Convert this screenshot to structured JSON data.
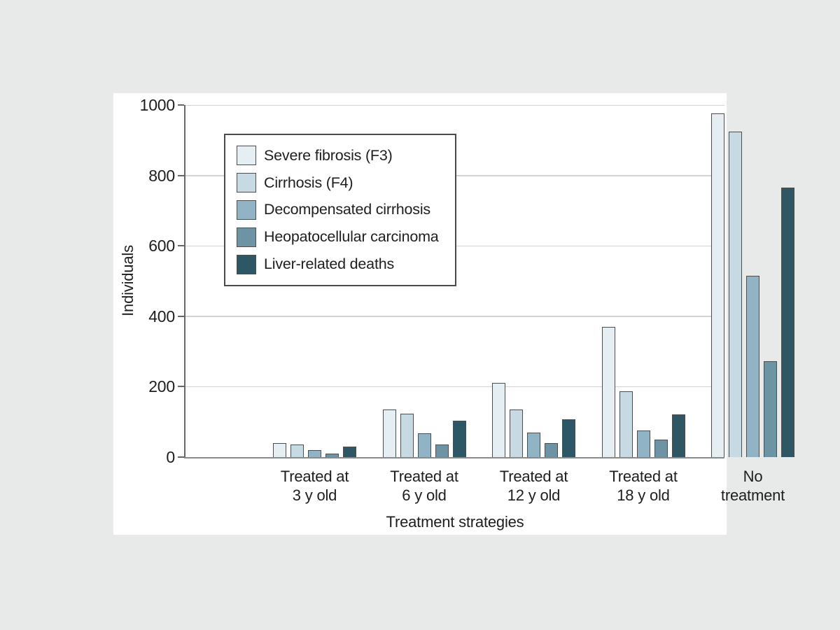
{
  "figure": {
    "page_background": "#e8eaea",
    "panel_background": "#ffffff"
  },
  "chart_data": {
    "type": "bar",
    "title": "",
    "xlabel": "Treatment strategies",
    "ylabel": "Individuals",
    "ylim": [
      0,
      1000
    ],
    "yticks": [
      0,
      200,
      400,
      600,
      800,
      1000
    ],
    "grid": true,
    "legend_position": "upper-left-inside",
    "categories": [
      [
        "Treated at",
        "3 y old"
      ],
      [
        "Treated at",
        "6 y old"
      ],
      [
        "Treated at",
        "12 y old"
      ],
      [
        "Treated at",
        "18 y old"
      ],
      [
        "No",
        "treatment"
      ]
    ],
    "series": [
      {
        "name": "Severe fibrosis (F3)",
        "color": "#e4eef3",
        "values": [
          40,
          135,
          210,
          370,
          977
        ]
      },
      {
        "name": "Cirrhosis (F4)",
        "color": "#c7dae3",
        "values": [
          36,
          123,
          135,
          186,
          925
        ]
      },
      {
        "name": "Decompensated cirrhosis",
        "color": "#90b4c5",
        "values": [
          20,
          68,
          70,
          76,
          515
        ]
      },
      {
        "name": "Heopatocellular carcinoma",
        "color": "#6d94a4",
        "values": [
          9,
          36,
          40,
          50,
          273
        ]
      },
      {
        "name": "Liver-related deaths",
        "color": "#2e5765",
        "values": [
          30,
          104,
          108,
          122,
          766
        ]
      }
    ],
    "styles": {
      "bar_border": "#4d4d4d",
      "grid_color": "#d2d2d2",
      "y_axis_color": "#666666",
      "x_axis_color": "#8a8a8a",
      "text_color": "#1e1e1e",
      "legend_border": "#4a4a4a"
    }
  }
}
